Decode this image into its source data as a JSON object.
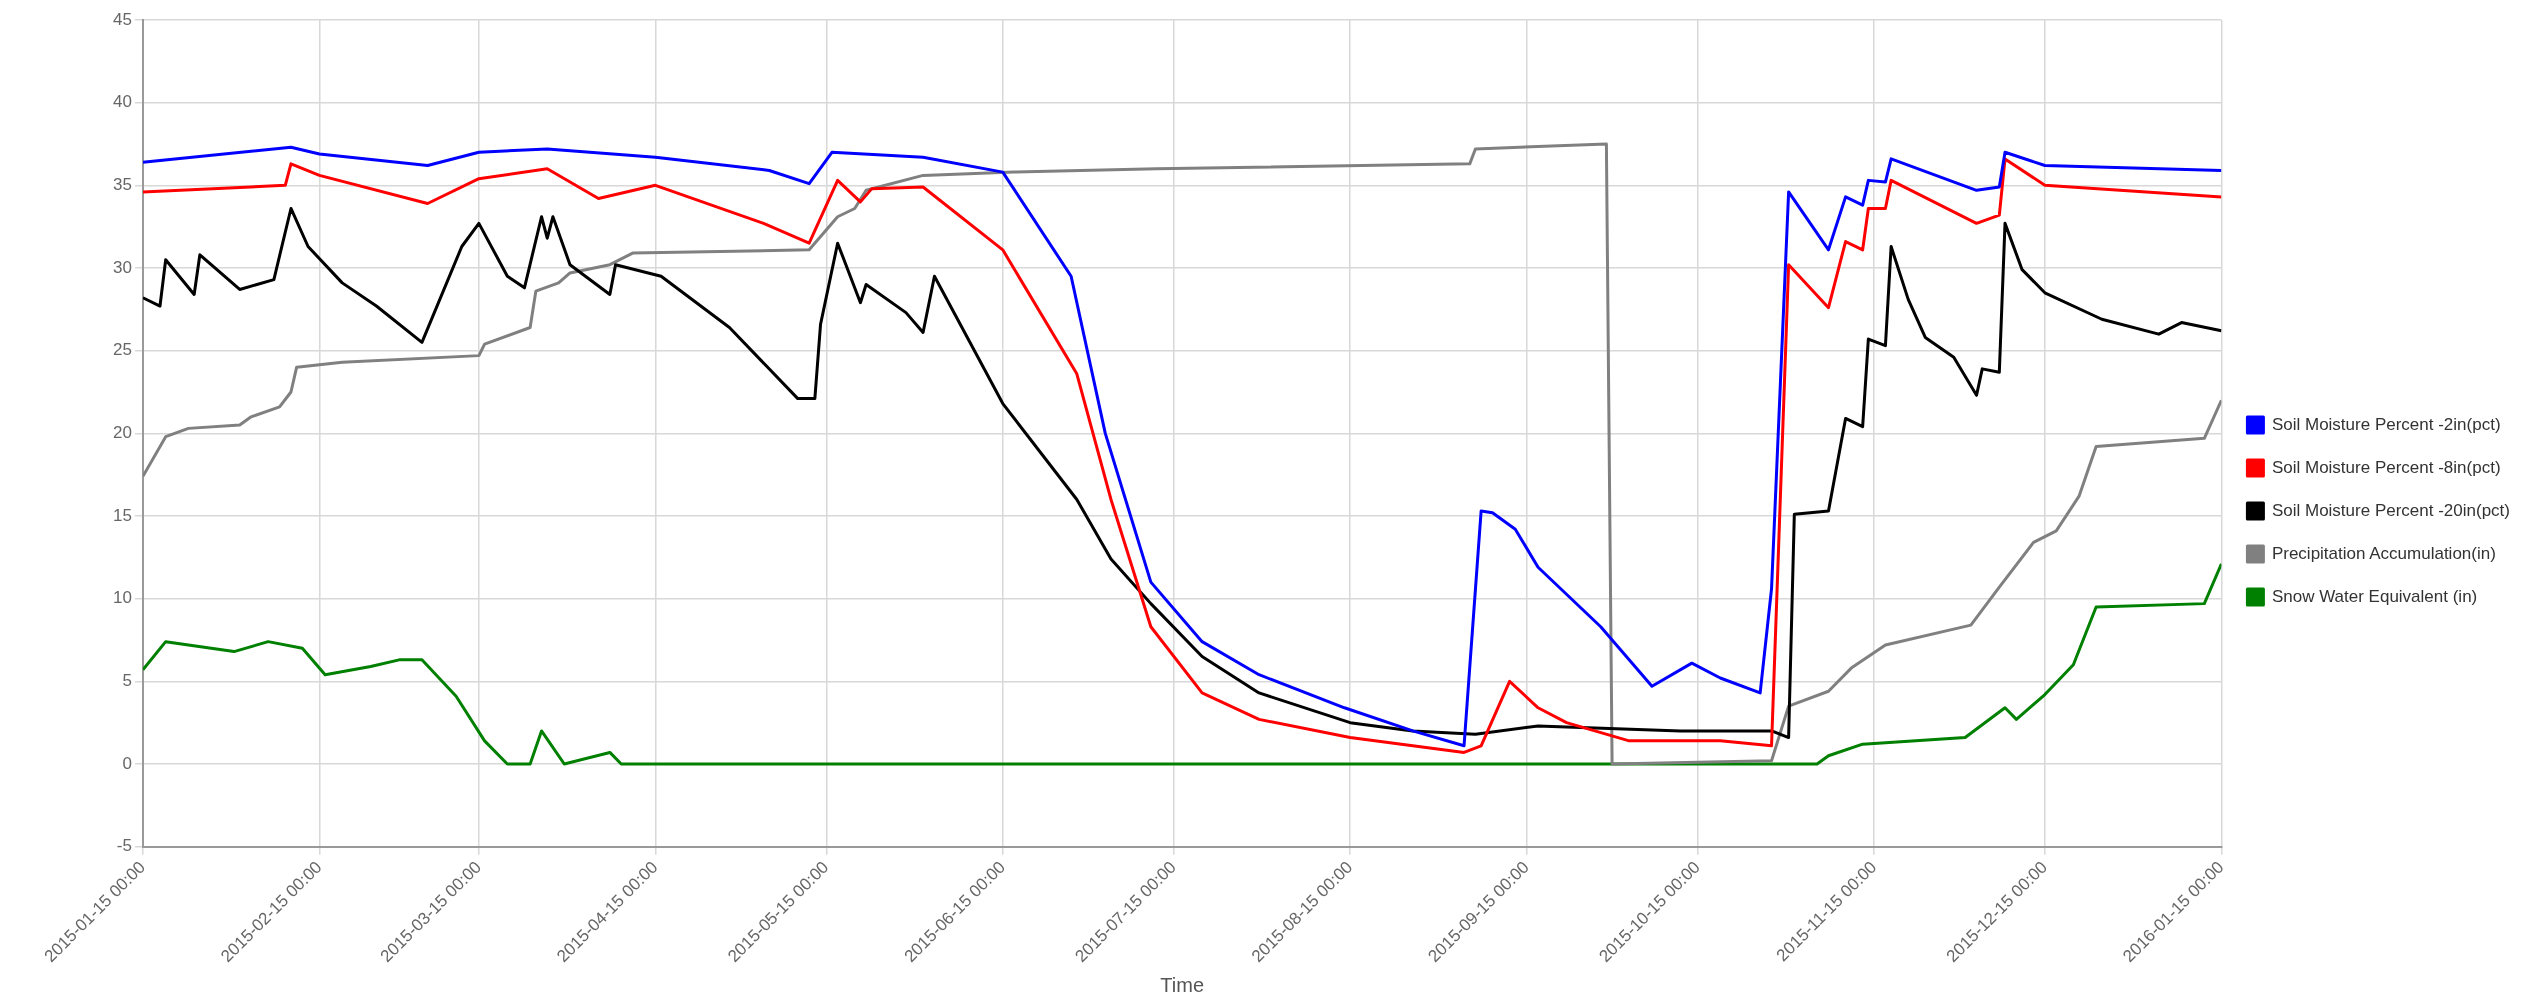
{
  "chart_data": {
    "type": "line",
    "xlabel": "Time",
    "xlim": [
      "2015-01-15",
      "2016-01-15"
    ],
    "ylim": [
      -5,
      45
    ],
    "yticks": [
      -5,
      0,
      5,
      10,
      15,
      20,
      25,
      30,
      35,
      40,
      45
    ],
    "xticks": [
      {
        "value": "2015-01-15",
        "label": "2015-01-15 00:00"
      },
      {
        "value": "2015-02-15",
        "label": "2015-02-15 00:00"
      },
      {
        "value": "2015-03-15",
        "label": "2015-03-15 00:00"
      },
      {
        "value": "2015-04-15",
        "label": "2015-04-15 00:00"
      },
      {
        "value": "2015-05-15",
        "label": "2015-05-15 00:00"
      },
      {
        "value": "2015-06-15",
        "label": "2015-06-15 00:00"
      },
      {
        "value": "2015-07-15",
        "label": "2015-07-15 00:00"
      },
      {
        "value": "2015-08-15",
        "label": "2015-08-15 00:00"
      },
      {
        "value": "2015-09-15",
        "label": "2015-09-15 00:00"
      },
      {
        "value": "2015-10-15",
        "label": "2015-10-15 00:00"
      },
      {
        "value": "2015-11-15",
        "label": "2015-11-15 00:00"
      },
      {
        "value": "2015-12-15",
        "label": "2015-12-15 00:00"
      },
      {
        "value": "2016-01-15",
        "label": "2016-01-15 00:00"
      }
    ],
    "grid": true,
    "legend": "right",
    "series": [
      {
        "name": "Soil Moisture Percent -2in(pct)",
        "color": "#0000ff",
        "x": [
          "2015-01-15",
          "2015-02-10",
          "2015-02-15",
          "2015-03-06",
          "2015-03-15",
          "2015-03-27",
          "2015-04-15",
          "2015-05-05",
          "2015-05-12",
          "2015-05-16",
          "2015-06-01",
          "2015-06-15",
          "2015-06-27",
          "2015-07-03",
          "2015-07-11",
          "2015-07-20",
          "2015-07-30",
          "2015-08-14",
          "2015-08-26",
          "2015-09-04",
          "2015-09-07",
          "2015-09-09",
          "2015-09-13",
          "2015-09-17",
          "2015-09-28",
          "2015-10-07",
          "2015-10-14",
          "2015-10-19",
          "2015-10-26",
          "2015-10-28",
          "2015-10-31",
          "2015-11-07",
          "2015-11-10",
          "2015-11-13",
          "2015-11-14",
          "2015-11-17",
          "2015-11-18",
          "2015-12-03",
          "2015-12-07",
          "2015-12-08",
          "2015-12-15",
          "2016-01-15"
        ],
        "values": [
          36.4,
          37.3,
          36.9,
          36.2,
          37.0,
          37.2,
          36.7,
          35.9,
          35.1,
          37.0,
          36.7,
          35.8,
          29.5,
          20.0,
          11.0,
          7.4,
          5.4,
          3.4,
          2.0,
          1.1,
          15.3,
          15.2,
          14.2,
          11.9,
          8.3,
          4.7,
          6.1,
          5.2,
          4.3,
          10.6,
          34.6,
          31.1,
          34.3,
          33.8,
          35.3,
          35.2,
          36.6,
          34.7,
          34.9,
          37.0,
          36.2,
          35.9
        ]
      },
      {
        "name": "Soil Moisture Percent -8in(pct)",
        "color": "#ff0000",
        "x": [
          "2015-01-15",
          "2015-02-09",
          "2015-02-10",
          "2015-02-15",
          "2015-03-06",
          "2015-03-15",
          "2015-03-27",
          "2015-04-05",
          "2015-04-15",
          "2015-05-04",
          "2015-05-12",
          "2015-05-17",
          "2015-05-21",
          "2015-05-23",
          "2015-06-01",
          "2015-06-15",
          "2015-06-28",
          "2015-07-04",
          "2015-07-11",
          "2015-07-20",
          "2015-07-30",
          "2015-08-15",
          "2015-09-04",
          "2015-09-07",
          "2015-09-12",
          "2015-09-17",
          "2015-09-22",
          "2015-10-03",
          "2015-10-19",
          "2015-10-28",
          "2015-10-31",
          "2015-11-07",
          "2015-11-10",
          "2015-11-13",
          "2015-11-14",
          "2015-11-17",
          "2015-11-18",
          "2015-12-03",
          "2015-12-07",
          "2015-12-08",
          "2015-12-15",
          "2016-01-15"
        ],
        "values": [
          34.6,
          35.0,
          36.3,
          35.6,
          33.9,
          35.4,
          36.0,
          34.2,
          35.0,
          32.7,
          31.5,
          35.3,
          34.0,
          34.8,
          34.9,
          31.1,
          23.6,
          16.0,
          8.3,
          4.3,
          2.7,
          1.6,
          0.7,
          1.1,
          5.0,
          3.4,
          2.5,
          1.4,
          1.4,
          1.1,
          30.2,
          27.6,
          31.6,
          31.1,
          33.6,
          33.6,
          35.3,
          32.7,
          33.2,
          36.6,
          35.0,
          34.3
        ]
      },
      {
        "name": "Soil Moisture Percent -20in(pct)",
        "color": "#000000",
        "x": [
          "2015-01-15",
          "2015-01-18",
          "2015-01-19",
          "2015-01-24",
          "2015-01-25",
          "2015-02-01",
          "2015-02-07",
          "2015-02-10",
          "2015-02-13",
          "2015-02-19",
          "2015-02-25",
          "2015-03-05",
          "2015-03-12",
          "2015-03-15",
          "2015-03-20",
          "2015-03-23",
          "2015-03-26",
          "2015-03-27",
          "2015-03-28",
          "2015-03-31",
          "2015-04-07",
          "2015-04-08",
          "2015-04-16",
          "2015-04-28",
          "2015-05-10",
          "2015-05-13",
          "2015-05-14",
          "2015-05-17",
          "2015-05-21",
          "2015-05-22",
          "2015-05-29",
          "2015-06-01",
          "2015-06-03",
          "2015-06-15",
          "2015-06-28",
          "2015-07-04",
          "2015-07-11",
          "2015-07-20",
          "2015-07-30",
          "2015-08-15",
          "2015-08-26",
          "2015-09-06",
          "2015-09-17",
          "2015-10-12",
          "2015-10-28",
          "2015-10-31",
          "2015-11-01",
          "2015-11-07",
          "2015-11-10",
          "2015-11-13",
          "2015-11-14",
          "2015-11-17",
          "2015-11-18",
          "2015-11-21",
          "2015-11-24",
          "2015-11-29",
          "2015-12-03",
          "2015-12-04",
          "2015-12-07",
          "2015-12-08",
          "2015-12-11",
          "2015-12-15",
          "2015-12-25",
          "2016-01-04",
          "2016-01-08",
          "2016-01-15"
        ],
        "values": [
          28.2,
          27.7,
          30.5,
          28.4,
          30.8,
          28.7,
          29.3,
          33.6,
          31.3,
          29.1,
          27.7,
          25.5,
          31.3,
          32.7,
          29.5,
          28.8,
          33.1,
          31.8,
          33.1,
          30.2,
          28.4,
          30.2,
          29.5,
          26.4,
          22.1,
          22.1,
          26.6,
          31.5,
          27.9,
          29.0,
          27.3,
          26.1,
          29.5,
          21.8,
          16.0,
          12.4,
          9.7,
          6.5,
          4.3,
          2.5,
          2.0,
          1.8,
          2.3,
          2.0,
          2.0,
          1.6,
          15.1,
          15.3,
          20.9,
          20.4,
          25.7,
          25.3,
          31.3,
          28.1,
          25.8,
          24.6,
          22.3,
          23.9,
          23.7,
          32.7,
          29.9,
          28.5,
          26.9,
          26.0,
          26.7,
          26.2
        ]
      },
      {
        "name": "Precipitation Accumulation(in)",
        "color": "#808080",
        "x": [
          "2015-01-15",
          "2015-01-19",
          "2015-01-23",
          "2015-02-01",
          "2015-02-03",
          "2015-02-08",
          "2015-02-10",
          "2015-02-11",
          "2015-02-19",
          "2015-03-15",
          "2015-03-16",
          "2015-03-24",
          "2015-03-25",
          "2015-03-29",
          "2015-03-31",
          "2015-04-07",
          "2015-04-11",
          "2015-05-12",
          "2015-05-17",
          "2015-05-20",
          "2015-05-22",
          "2015-06-01",
          "2015-06-17",
          "2015-07-12",
          "2015-09-05",
          "2015-09-06",
          "2015-09-29",
          "2015-09-30",
          "2015-10-28",
          "2015-10-31",
          "2015-11-07",
          "2015-11-11",
          "2015-11-17",
          "2015-12-02",
          "2015-12-07",
          "2015-12-13",
          "2015-12-17",
          "2015-12-21",
          "2015-12-24",
          "2016-01-12",
          "2016-01-15"
        ],
        "values": [
          17.4,
          19.8,
          20.3,
          20.5,
          21.0,
          21.6,
          22.5,
          24.0,
          24.3,
          24.7,
          25.4,
          26.4,
          28.6,
          29.1,
          29.7,
          30.2,
          30.9,
          31.1,
          33.1,
          33.6,
          34.7,
          35.6,
          35.8,
          36.0,
          36.3,
          37.2,
          37.5,
          0.0,
          0.2,
          3.5,
          4.4,
          5.8,
          7.2,
          8.4,
          10.7,
          13.4,
          14.1,
          16.2,
          19.2,
          19.7,
          22.0
        ]
      },
      {
        "name": "Snow Water Equivalent (in)",
        "color": "#008000",
        "x": [
          "2015-01-15",
          "2015-01-19",
          "2015-01-31",
          "2015-02-06",
          "2015-02-12",
          "2015-02-16",
          "2015-02-24",
          "2015-03-01",
          "2015-03-05",
          "2015-03-11",
          "2015-03-16",
          "2015-03-20",
          "2015-03-24",
          "2015-03-26",
          "2015-03-30",
          "2015-04-07",
          "2015-04-09",
          "2015-11-05",
          "2015-11-07",
          "2015-11-13",
          "2015-12-01",
          "2015-12-08",
          "2015-12-10",
          "2015-12-15",
          "2015-12-20",
          "2015-12-24",
          "2016-01-12",
          "2016-01-15"
        ],
        "values": [
          5.7,
          7.4,
          6.8,
          7.4,
          7.0,
          5.4,
          5.9,
          6.3,
          6.3,
          4.1,
          1.4,
          0.0,
          0.0,
          2.0,
          0.0,
          0.7,
          0.0,
          0.0,
          0.5,
          1.2,
          1.6,
          3.4,
          2.7,
          4.2,
          6.0,
          9.5,
          9.7,
          12.1
        ]
      }
    ]
  }
}
